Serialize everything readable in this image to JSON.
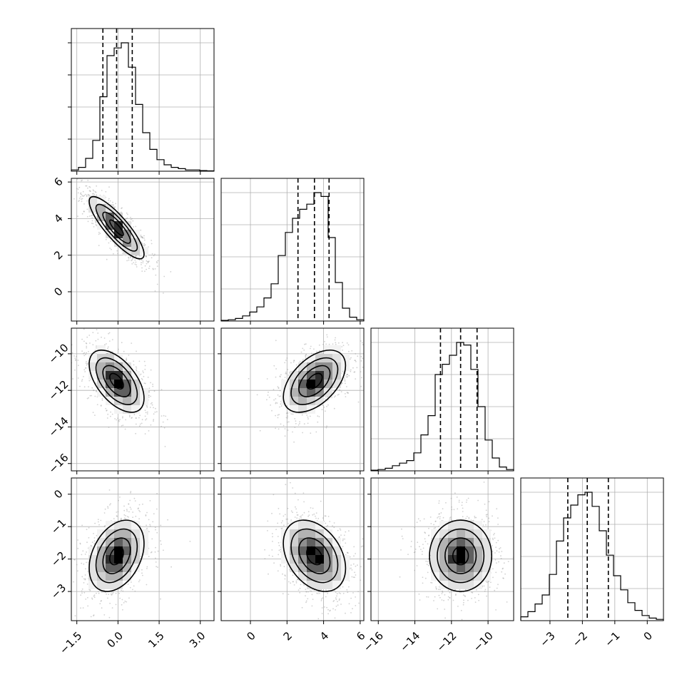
{
  "chart_data": {
    "type": "corner",
    "parameters": [
      {
        "range": [
          -1.7,
          3.5
        ],
        "ticks": [
          -1.5,
          0.0,
          1.5,
          3.0
        ],
        "tick_labels": [
          "−1.5",
          "0.0",
          "1.5",
          "3.0"
        ],
        "hist": [
          0.01,
          0.03,
          0.1,
          0.24,
          0.58,
          0.9,
          0.96,
          1.0,
          0.81,
          0.52,
          0.3,
          0.17,
          0.09,
          0.05,
          0.03,
          0.02,
          0.01,
          0.01,
          0.005,
          0.003
        ],
        "quantiles": [
          -0.55,
          -0.05,
          0.52
        ]
      },
      {
        "range": [
          -1.6,
          6.2
        ],
        "ticks": [
          0,
          2,
          4,
          6
        ],
        "tick_labels": [
          "0",
          "2",
          "4",
          "6"
        ],
        "hist": [
          0.005,
          0.01,
          0.02,
          0.04,
          0.07,
          0.11,
          0.18,
          0.29,
          0.51,
          0.69,
          0.8,
          0.87,
          0.91,
          1.0,
          0.97,
          0.65,
          0.3,
          0.1,
          0.03,
          0.01
        ],
        "quantiles": [
          2.6,
          3.5,
          4.3
        ]
      },
      {
        "range": [
          -16.4,
          -8.6
        ],
        "ticks": [
          -16,
          -14,
          -12,
          -10
        ],
        "tick_labels": [
          "−16",
          "−14",
          "−12",
          "−10"
        ],
        "hist": [
          0.005,
          0.01,
          0.02,
          0.04,
          0.06,
          0.08,
          0.14,
          0.28,
          0.43,
          0.75,
          0.83,
          0.9,
          1.0,
          0.98,
          0.79,
          0.5,
          0.24,
          0.1,
          0.03,
          0.01
        ],
        "quantiles": [
          -12.6,
          -11.5,
          -10.6
        ]
      },
      {
        "range": [
          -3.9,
          0.5
        ],
        "ticks": [
          -3,
          -2,
          -1,
          0
        ],
        "tick_labels": [
          "−3",
          "−2",
          "−1",
          "0"
        ],
        "hist": [
          0.03,
          0.07,
          0.13,
          0.2,
          0.36,
          0.62,
          0.8,
          0.9,
          0.98,
          1.0,
          0.89,
          0.7,
          0.51,
          0.35,
          0.24,
          0.14,
          0.08,
          0.04,
          0.02,
          0.01
        ],
        "quantiles": [
          -2.45,
          -1.85,
          -1.2
        ]
      }
    ],
    "pairs": [
      {
        "row": 1,
        "col": 0,
        "center": [
          -0.05,
          3.5
        ],
        "sx": 0.5,
        "sy": 0.85,
        "rho": -0.85
      },
      {
        "row": 2,
        "col": 0,
        "center": [
          -0.05,
          -11.5
        ],
        "sx": 0.5,
        "sy": 0.85,
        "rho": -0.55
      },
      {
        "row": 2,
        "col": 1,
        "center": [
          3.5,
          -11.5
        ],
        "sx": 0.85,
        "sy": 0.85,
        "rho": 0.5
      },
      {
        "row": 3,
        "col": 0,
        "center": [
          -0.05,
          -1.9
        ],
        "sx": 0.5,
        "sy": 0.55,
        "rho": 0.35
      },
      {
        "row": 3,
        "col": 1,
        "center": [
          3.5,
          -1.9
        ],
        "sx": 0.85,
        "sy": 0.55,
        "rho": -0.35
      },
      {
        "row": 3,
        "col": 2,
        "center": [
          -11.5,
          -1.9
        ],
        "sx": 0.85,
        "sy": 0.55,
        "rho": 0.0
      }
    ],
    "contour_levels": [
      0.5,
      1.0,
      1.5,
      2.0
    ],
    "grid": true,
    "colors": {
      "line": "#000000",
      "grid": "#b0b0b0",
      "density_dark": "#000000",
      "scatter": "#9a9a9a"
    }
  }
}
